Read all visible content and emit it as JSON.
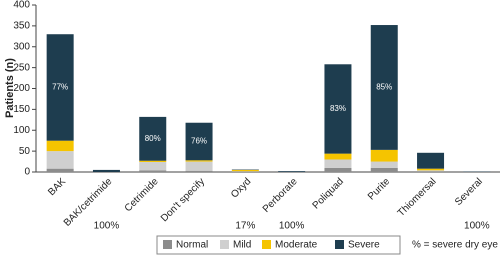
{
  "chart_data": {
    "type": "stacked_bar",
    "y_label": "Patients (n)",
    "categories": [
      "BAK",
      "BAK/cetrimide",
      "Cetrimide",
      "Don't specify",
      "Oxyd",
      "Perborate",
      "Poliquad",
      "Purite",
      "Thiomersal",
      "Several"
    ],
    "series": [
      {
        "name": "Normal",
        "color": "#8c8c8c",
        "values": [
          8,
          0,
          4,
          3,
          1,
          0,
          10,
          10,
          2,
          0
        ]
      },
      {
        "name": "Mild",
        "color": "#cfcfcf",
        "values": [
          42,
          0,
          20,
          22,
          1,
          0,
          20,
          15,
          2,
          0
        ]
      },
      {
        "name": "Moderate",
        "color": "#f5c400",
        "values": [
          25,
          0,
          3,
          3,
          3,
          0,
          14,
          28,
          4,
          0
        ]
      },
      {
        "name": "Severe",
        "color": "#1e3d4f",
        "values": [
          255,
          5,
          105,
          90,
          1,
          2,
          214,
          299,
          38,
          1
        ]
      }
    ],
    "percent_labels": [
      "77%",
      "100%",
      "80%",
      "76%",
      "17%",
      "100%",
      "83%",
      "85%",
      null,
      "100%"
    ],
    "footnote": "% = severe dry eye",
    "ylim": [
      0,
      400
    ],
    "yticks": [
      0,
      50,
      100,
      150,
      200,
      250,
      300,
      350,
      400
    ]
  }
}
